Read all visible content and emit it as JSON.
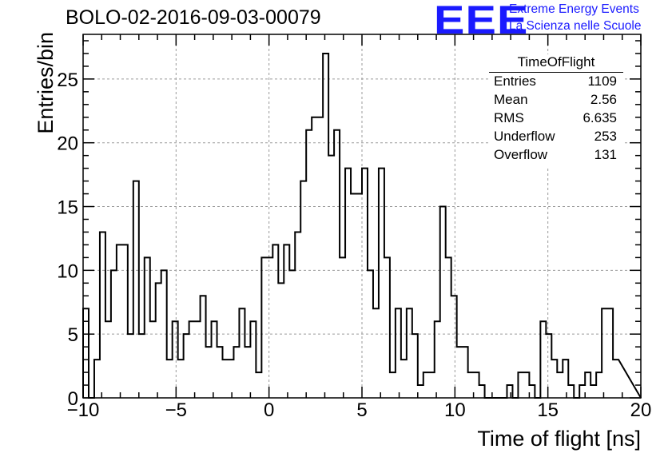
{
  "chart_data": {
    "type": "histogram",
    "title": "BOLO-02-2016-09-03-00079",
    "xlabel": "Time of flight [ns]",
    "ylabel": "Entries/bin",
    "xlim": [
      -10,
      20
    ],
    "ylim": [
      0,
      28.5
    ],
    "bin_width": 0.3,
    "grid": true,
    "x_ticks": [
      -10,
      -5,
      0,
      5,
      10,
      15,
      20
    ],
    "y_ticks": [
      0,
      5,
      10,
      15,
      20,
      25
    ],
    "values": [
      7,
      0,
      3,
      13,
      6,
      10,
      12,
      12,
      5,
      17,
      5,
      11,
      6,
      9,
      10,
      3,
      6,
      3,
      5,
      6,
      6,
      8,
      4,
      6,
      4,
      3,
      3,
      4,
      7,
      4,
      6,
      2,
      11,
      11,
      12,
      9,
      12,
      10,
      13,
      17,
      21,
      22,
      22,
      27,
      19,
      21,
      11,
      18,
      16,
      16,
      18,
      10,
      7,
      18,
      11,
      2,
      7,
      3,
      7,
      5,
      1,
      2,
      2,
      6,
      15,
      11,
      8,
      4,
      4,
      2,
      2,
      1,
      0,
      0,
      0,
      0,
      1,
      0,
      2,
      2,
      1,
      0,
      6,
      5,
      3,
      2,
      3,
      1,
      0,
      1,
      2,
      1,
      2,
      7,
      7,
      3
    ]
  },
  "logo": {
    "mark": "EEE",
    "line1": "Extreme Energy Events",
    "line2": "La Scienza nelle Scuole"
  },
  "stats": {
    "title": "TimeOfFlight",
    "rows": [
      {
        "key": "Entries",
        "value": "1109"
      },
      {
        "key": "Mean",
        "value": "2.56"
      },
      {
        "key": "RMS",
        "value": "6.635"
      },
      {
        "key": "Underflow",
        "value": "253"
      },
      {
        "key": "Overflow",
        "value": "131"
      }
    ]
  },
  "colors": {
    "line": "#000000",
    "grid": "#9a9a9a",
    "logo": "#1a1aff"
  }
}
